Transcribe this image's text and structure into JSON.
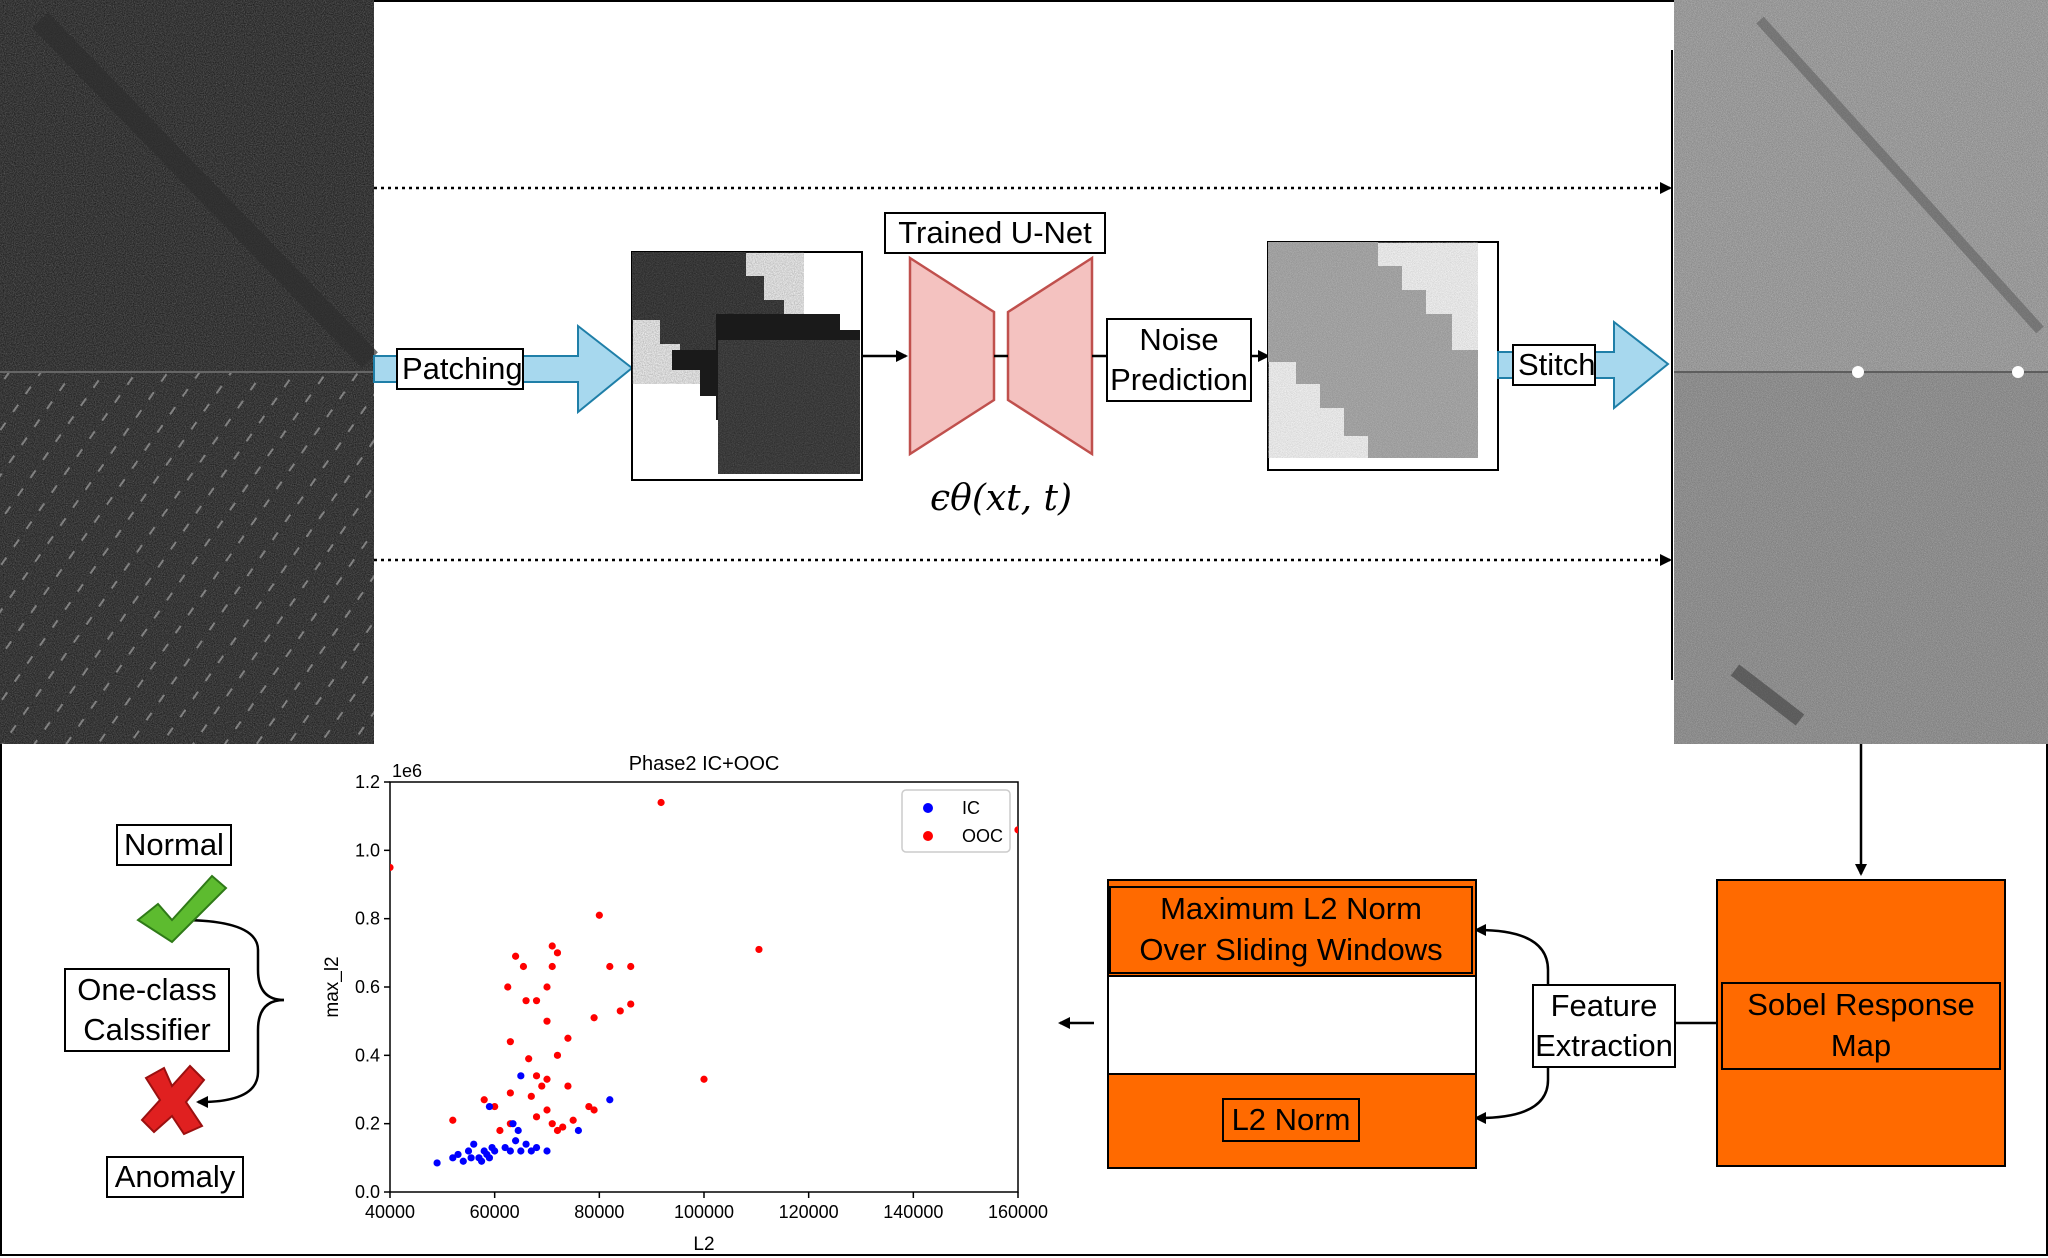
{
  "colors": {
    "arrow_fill": "#a7d8ee",
    "arrow_stroke": "#1f7fa8",
    "unet_fill": "#f4c2c0",
    "unet_stroke": "#c0504d",
    "orange": "#ff6a00",
    "ic": "#0000ff",
    "ooc": "#ff0000",
    "check": "#5dbb2f",
    "cross": "#e02020"
  },
  "pipeline": {
    "patching": "Patching",
    "unet": "Trained U-Net",
    "unet_formula": "ϵθ(xt, t)",
    "noise_line1": "Noise",
    "noise_line2": "Prediction",
    "stitch": "Stitch"
  },
  "features": {
    "sobel_line1": "Sobel Response",
    "sobel_line2": "Map",
    "feature_line1": "Feature",
    "feature_line2": "Extraction",
    "max_l2_line1": "Maximum L2 Norm",
    "max_l2_line2": "Over Sliding Windows",
    "l2_norm": "L2 Norm"
  },
  "classifier": {
    "normal": "Normal",
    "oneclass_line1": "One-class",
    "oneclass_line2": "Calssifier",
    "anomaly": "Anomaly",
    "check_icon": "checkmark-icon",
    "cross_icon": "cross-icon"
  },
  "chart_data": {
    "type": "scatter",
    "title": "Phase2 IC+OOC",
    "xlabel": "L2",
    "ylabel": "max_l2",
    "y_multiplier": "1e6",
    "xlim": [
      40000,
      160000
    ],
    "ylim": [
      0,
      1.2
    ],
    "xticks": [
      "40000",
      "60000",
      "80000",
      "100000",
      "120000",
      "140000",
      "160000"
    ],
    "yticks": [
      "0.0",
      "0.2",
      "0.4",
      "0.6",
      "0.8",
      "1.0",
      "1.2"
    ],
    "legend_position": "top-right",
    "grid": false,
    "series": [
      {
        "name": "IC",
        "color": "#0000ff",
        "points": [
          [
            49000,
            0.085
          ],
          [
            52000,
            0.1
          ],
          [
            53000,
            0.11
          ],
          [
            54000,
            0.09
          ],
          [
            55000,
            0.12
          ],
          [
            55500,
            0.1
          ],
          [
            56000,
            0.14
          ],
          [
            57000,
            0.1
          ],
          [
            57500,
            0.09
          ],
          [
            58000,
            0.12
          ],
          [
            58500,
            0.11
          ],
          [
            59000,
            0.1
          ],
          [
            59500,
            0.13
          ],
          [
            60000,
            0.12
          ],
          [
            62000,
            0.13
          ],
          [
            63000,
            0.12
          ],
          [
            63500,
            0.2
          ],
          [
            64000,
            0.15
          ],
          [
            64500,
            0.18
          ],
          [
            65000,
            0.12
          ],
          [
            66000,
            0.14
          ],
          [
            67000,
            0.12
          ],
          [
            68000,
            0.13
          ],
          [
            70000,
            0.12
          ],
          [
            76000,
            0.18
          ],
          [
            82000,
            0.27
          ],
          [
            65000,
            0.34
          ],
          [
            59000,
            0.25
          ]
        ]
      },
      {
        "name": "OOC",
        "color": "#ff0000",
        "points": [
          [
            40000,
            0.95
          ],
          [
            91800,
            1.14
          ],
          [
            160000,
            1.06
          ],
          [
            110500,
            0.71
          ],
          [
            80000,
            0.81
          ],
          [
            71000,
            0.72
          ],
          [
            72000,
            0.7
          ],
          [
            64000,
            0.69
          ],
          [
            65500,
            0.66
          ],
          [
            62500,
            0.6
          ],
          [
            71000,
            0.66
          ],
          [
            82000,
            0.66
          ],
          [
            86000,
            0.66
          ],
          [
            70000,
            0.6
          ],
          [
            66000,
            0.56
          ],
          [
            68000,
            0.56
          ],
          [
            86000,
            0.55
          ],
          [
            79000,
            0.51
          ],
          [
            84000,
            0.53
          ],
          [
            70000,
            0.5
          ],
          [
            74000,
            0.45
          ],
          [
            63000,
            0.44
          ],
          [
            66500,
            0.39
          ],
          [
            72000,
            0.4
          ],
          [
            68000,
            0.34
          ],
          [
            70000,
            0.33
          ],
          [
            74000,
            0.31
          ],
          [
            69000,
            0.31
          ],
          [
            63000,
            0.29
          ],
          [
            67000,
            0.28
          ],
          [
            58000,
            0.27
          ],
          [
            60000,
            0.25
          ],
          [
            78000,
            0.25
          ],
          [
            79000,
            0.24
          ],
          [
            100000,
            0.33
          ],
          [
            61000,
            0.18
          ],
          [
            63000,
            0.2
          ],
          [
            71000,
            0.2
          ],
          [
            72000,
            0.18
          ],
          [
            73000,
            0.19
          ],
          [
            75000,
            0.21
          ],
          [
            52000,
            0.21
          ],
          [
            68000,
            0.22
          ],
          [
            70000,
            0.24
          ]
        ]
      }
    ]
  }
}
